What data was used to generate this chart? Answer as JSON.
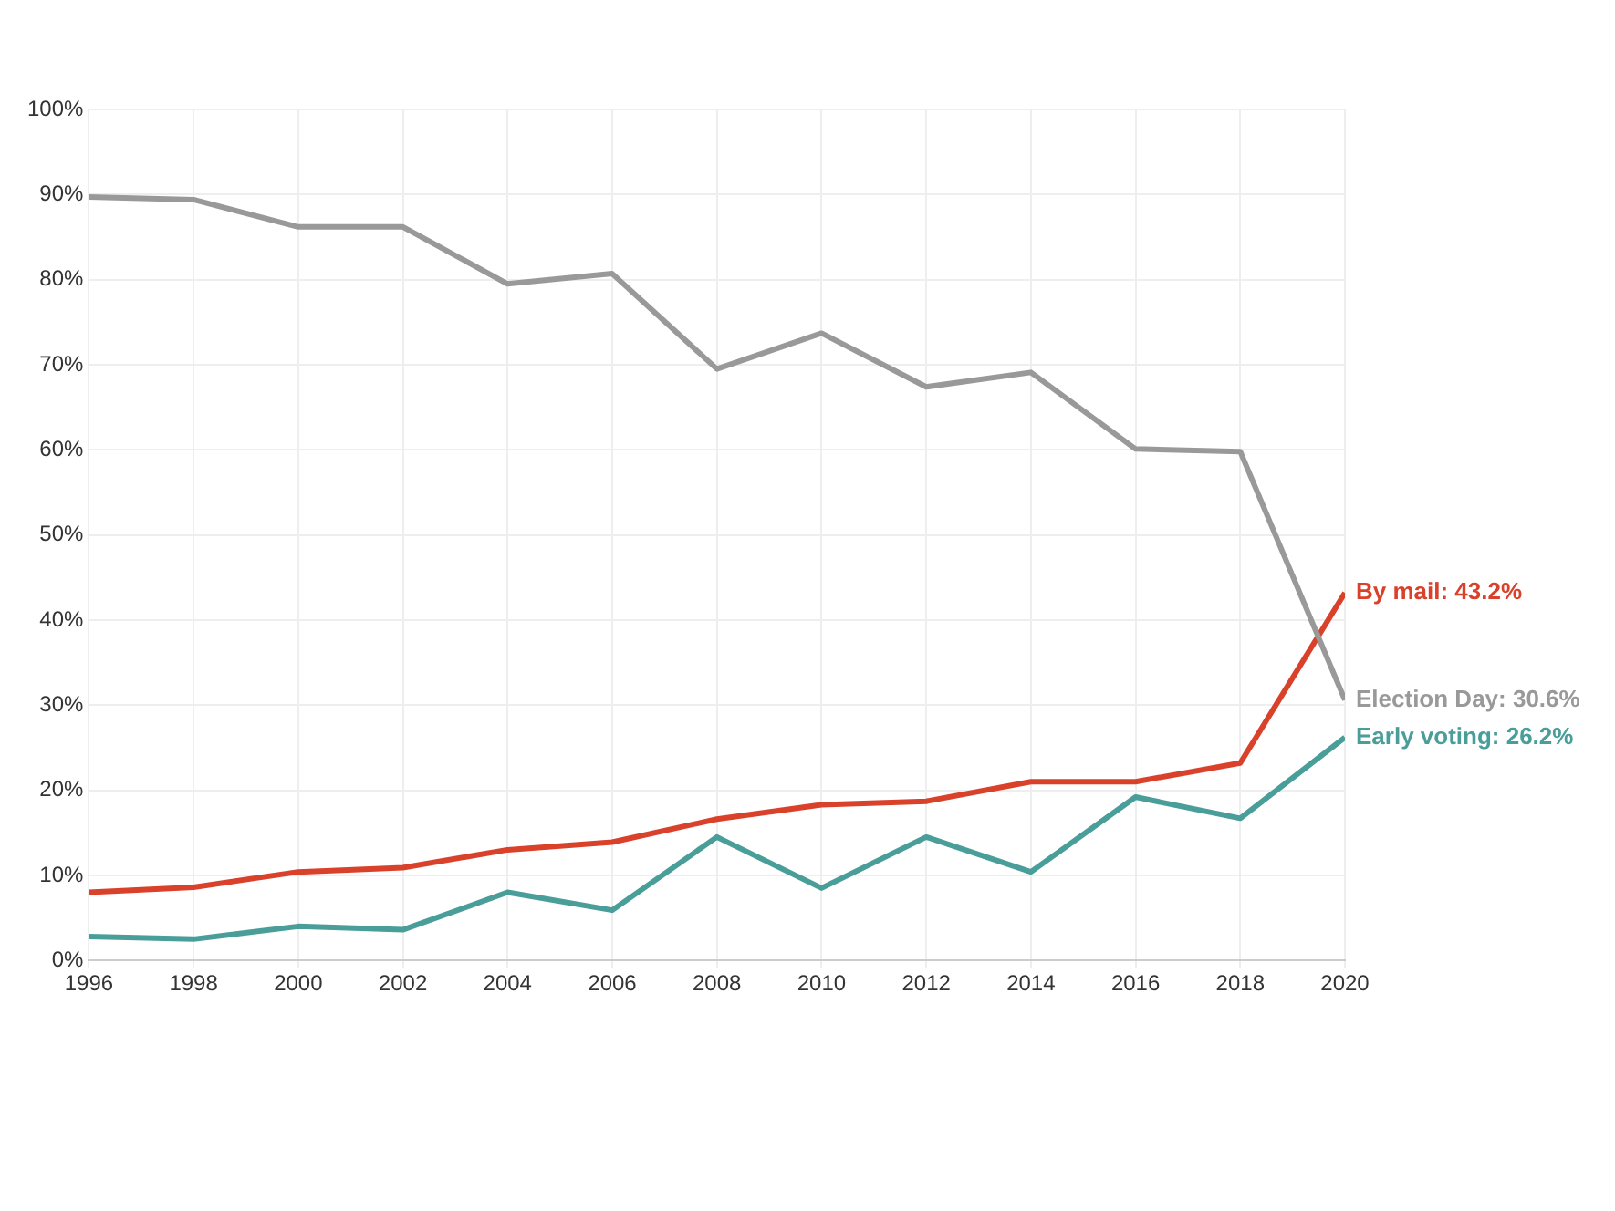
{
  "chart_data": {
    "type": "line",
    "x": [
      1996,
      1998,
      2000,
      2002,
      2004,
      2006,
      2008,
      2010,
      2012,
      2014,
      2016,
      2018,
      2020
    ],
    "series": [
      {
        "color": "#999999",
        "values": [
          89.7,
          89.4,
          86.2,
          86.2,
          79.5,
          80.7,
          69.5,
          73.7,
          67.4,
          69.1,
          60.1,
          59.8,
          30.6
        ]
      },
      {
        "color": "#d9412b",
        "values": [
          8.0,
          8.6,
          10.4,
          10.9,
          13.0,
          13.9,
          16.6,
          18.3,
          18.7,
          21.0,
          21.0,
          23.2,
          43.2
        ]
      },
      {
        "color": "#4a9e9a",
        "values": [
          2.8,
          2.5,
          4.0,
          3.6,
          8.0,
          5.9,
          14.5,
          8.5,
          14.5,
          10.4,
          19.2,
          16.7,
          26.2
        ]
      }
    ],
    "xlim": [
      1996,
      2020
    ],
    "xticks": [
      1996,
      1998,
      2000,
      2002,
      2004,
      2006,
      2008,
      2010,
      2012,
      2014,
      2016,
      2018,
      2020
    ],
    "ylim": [
      0,
      100
    ],
    "yticks": [
      {
        "value": 0,
        "label": "0%"
      },
      {
        "value": 10,
        "label": "10%"
      },
      {
        "value": 20,
        "label": "20%"
      },
      {
        "value": 30,
        "label": "30%"
      },
      {
        "value": 40,
        "label": "40%"
      },
      {
        "value": 50,
        "label": "50%"
      },
      {
        "value": 60,
        "label": "60%"
      },
      {
        "value": 70,
        "label": "70%"
      },
      {
        "value": 80,
        "label": "80%"
      },
      {
        "value": 90,
        "label": "90%"
      },
      {
        "value": 100,
        "label": "100%"
      }
    ],
    "annotations": [
      "Election Day: 30.6%",
      "By mail: 43.2%",
      "Early voting: 26.2%"
    ],
    "grid": true,
    "legend": false,
    "marker": "none",
    "line_style": "solid"
  }
}
